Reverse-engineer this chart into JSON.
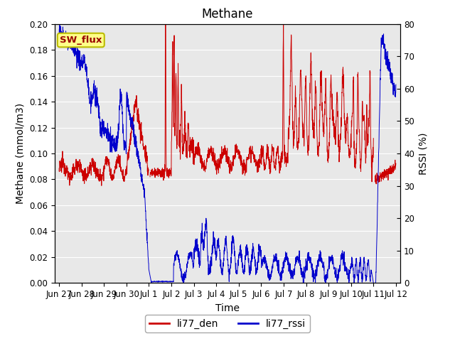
{
  "title": "Methane",
  "ylabel_left": "Methane (mmol/m3)",
  "ylabel_right": "RSSI (%)",
  "xlabel": "Time",
  "ylim_left": [
    0.0,
    0.2
  ],
  "ylim_right": [
    0,
    80
  ],
  "yticks_left": [
    0.0,
    0.02,
    0.04,
    0.06,
    0.08,
    0.1,
    0.12,
    0.14,
    0.16,
    0.18,
    0.2
  ],
  "yticks_right": [
    0,
    10,
    20,
    30,
    40,
    50,
    60,
    70,
    80
  ],
  "xtick_labels": [
    "Jun 27",
    "Jun 28",
    "Jun 29",
    "Jun 30",
    "Jul 1",
    "Jul 2",
    "Jul 3",
    "Jul 4",
    "Jul 5",
    "Jul 6",
    "Jul 7",
    "Jul 8",
    "Jul 9",
    "Jul 10",
    "Jul 11",
    "Jul 12"
  ],
  "color_den": "#cc0000",
  "color_rssi": "#0000cc",
  "legend_den": "li77_den",
  "legend_rssi": "li77_rssi",
  "sw_flux_label": "SW_flux",
  "sw_flux_bg": "#ffff88",
  "sw_flux_border": "#bbbb00",
  "sw_flux_text_color": "#990000",
  "background_color": "#e8e8e8",
  "title_fontsize": 12,
  "axis_fontsize": 10,
  "tick_fontsize": 8.5,
  "legend_fontsize": 10
}
